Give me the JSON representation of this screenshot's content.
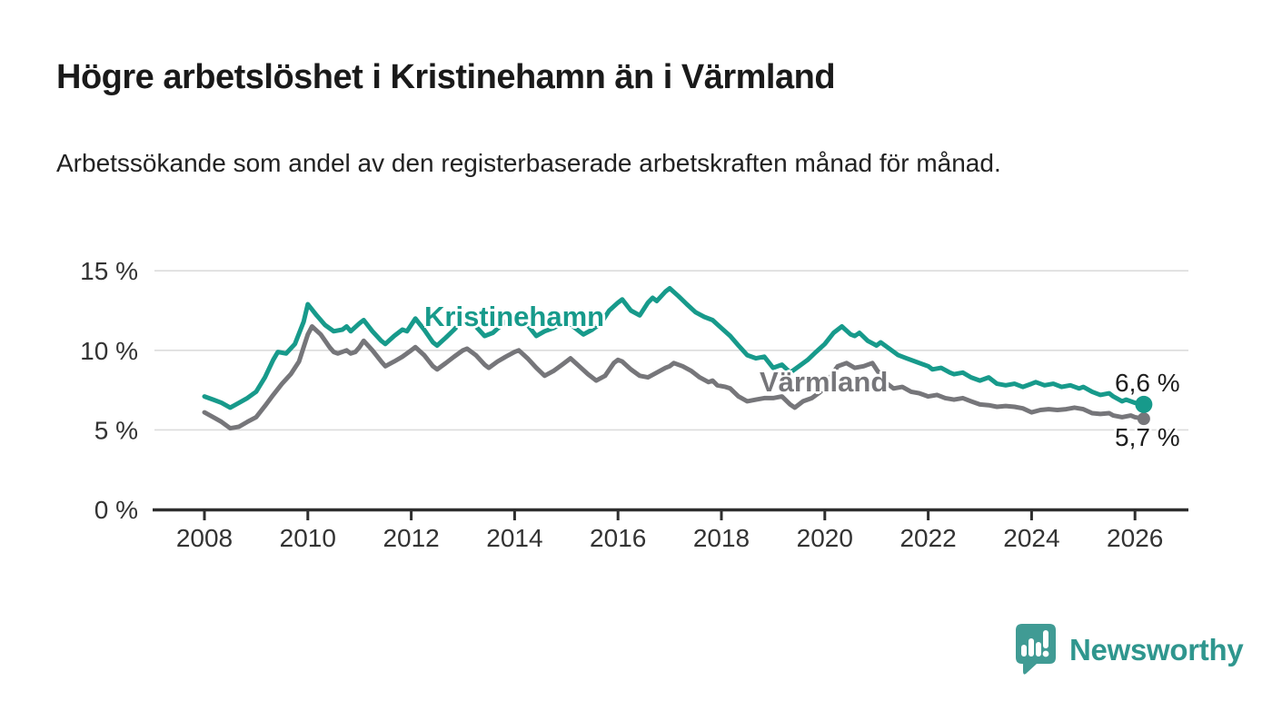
{
  "title": "Högre arbetslöshet i Kristinehamn än i Värmland",
  "subtitle": "Arbetssökande som andel av den registerbaserade arbetskraften månad för månad.",
  "footer": {
    "brand": "Newsworthy"
  },
  "colors": {
    "kristinehamn": "#179a8b",
    "varmland": "#76767a",
    "gridline": "#dcdcdc",
    "axis": "#2e2e2e",
    "axis_text": "#333333",
    "logo_bubble": "#409b94",
    "logo_text": "#2f968e"
  },
  "chart_data": {
    "type": "line",
    "title": "Högre arbetslöshet i Kristinehamn än i Värmland",
    "xlabel": "",
    "ylabel": "Arbetssökande som andel av den registerbaserade arbetskraften",
    "grid": true,
    "legend_position": "inline-labels",
    "xlim": [
      2007.0,
      2027.0
    ],
    "ylim": [
      0,
      15.5
    ],
    "x_ticks": [
      {
        "value": 2008,
        "label": "2008"
      },
      {
        "value": 2010,
        "label": "2010"
      },
      {
        "value": 2012,
        "label": "2012"
      },
      {
        "value": 2014,
        "label": "2014"
      },
      {
        "value": 2016,
        "label": "2016"
      },
      {
        "value": 2018,
        "label": "2018"
      },
      {
        "value": 2020,
        "label": "2020"
      },
      {
        "value": 2022,
        "label": "2022"
      },
      {
        "value": 2024,
        "label": "2024"
      },
      {
        "value": 2026,
        "label": "2026"
      }
    ],
    "y_ticks": [
      {
        "value": 0,
        "label": "0 %"
      },
      {
        "value": 5,
        "label": "5 %"
      },
      {
        "value": 10,
        "label": "10 %"
      },
      {
        "value": 15,
        "label": "15 %"
      }
    ],
    "series": [
      {
        "name": "Kristinehamn",
        "color": "#179a8b",
        "end_label": "6,6 %",
        "end_value": 6.6,
        "points": [
          [
            2008.0,
            7.1
          ],
          [
            2008.17,
            6.9
          ],
          [
            2008.33,
            6.7
          ],
          [
            2008.5,
            6.4
          ],
          [
            2008.67,
            6.7
          ],
          [
            2008.83,
            7.0
          ],
          [
            2009.0,
            7.4
          ],
          [
            2009.17,
            8.3
          ],
          [
            2009.33,
            9.4
          ],
          [
            2009.42,
            9.9
          ],
          [
            2009.58,
            9.8
          ],
          [
            2009.75,
            10.4
          ],
          [
            2009.92,
            11.8
          ],
          [
            2010.0,
            12.9
          ],
          [
            2010.17,
            12.2
          ],
          [
            2010.33,
            11.6
          ],
          [
            2010.5,
            11.2
          ],
          [
            2010.67,
            11.3
          ],
          [
            2010.75,
            11.5
          ],
          [
            2010.83,
            11.2
          ],
          [
            2011.0,
            11.7
          ],
          [
            2011.08,
            11.9
          ],
          [
            2011.25,
            11.2
          ],
          [
            2011.42,
            10.6
          ],
          [
            2011.5,
            10.4
          ],
          [
            2011.67,
            10.9
          ],
          [
            2011.83,
            11.3
          ],
          [
            2011.92,
            11.2
          ],
          [
            2012.0,
            11.6
          ],
          [
            2012.08,
            12.0
          ],
          [
            2012.25,
            11.3
          ],
          [
            2012.42,
            10.5
          ],
          [
            2012.5,
            10.3
          ],
          [
            2012.67,
            10.8
          ],
          [
            2012.83,
            11.3
          ],
          [
            2013.0,
            11.9
          ],
          [
            2013.08,
            12.2
          ],
          [
            2013.25,
            11.5
          ],
          [
            2013.42,
            10.9
          ],
          [
            2013.58,
            11.1
          ],
          [
            2013.75,
            11.6
          ],
          [
            2013.92,
            12.0
          ],
          [
            2014.0,
            12.2
          ],
          [
            2014.08,
            12.3
          ],
          [
            2014.25,
            11.6
          ],
          [
            2014.42,
            10.9
          ],
          [
            2014.58,
            11.2
          ],
          [
            2014.75,
            11.4
          ],
          [
            2014.92,
            11.7
          ],
          [
            2015.0,
            11.9
          ],
          [
            2015.17,
            11.4
          ],
          [
            2015.33,
            11.0
          ],
          [
            2015.5,
            11.3
          ],
          [
            2015.67,
            11.7
          ],
          [
            2015.83,
            12.5
          ],
          [
            2016.0,
            13.0
          ],
          [
            2016.08,
            13.2
          ],
          [
            2016.25,
            12.5
          ],
          [
            2016.42,
            12.2
          ],
          [
            2016.58,
            13.0
          ],
          [
            2016.67,
            13.3
          ],
          [
            2016.75,
            13.1
          ],
          [
            2016.92,
            13.7
          ],
          [
            2017.0,
            13.9
          ],
          [
            2017.17,
            13.4
          ],
          [
            2017.33,
            12.9
          ],
          [
            2017.5,
            12.4
          ],
          [
            2017.67,
            12.1
          ],
          [
            2017.83,
            11.9
          ],
          [
            2018.0,
            11.4
          ],
          [
            2018.17,
            10.9
          ],
          [
            2018.33,
            10.3
          ],
          [
            2018.5,
            9.7
          ],
          [
            2018.67,
            9.5
          ],
          [
            2018.83,
            9.6
          ],
          [
            2019.0,
            8.9
          ],
          [
            2019.17,
            9.1
          ],
          [
            2019.33,
            8.6
          ],
          [
            2019.5,
            9.0
          ],
          [
            2019.67,
            9.4
          ],
          [
            2019.83,
            9.9
          ],
          [
            2020.0,
            10.4
          ],
          [
            2020.17,
            11.1
          ],
          [
            2020.33,
            11.5
          ],
          [
            2020.5,
            11.0
          ],
          [
            2020.58,
            10.9
          ],
          [
            2020.67,
            11.1
          ],
          [
            2020.83,
            10.6
          ],
          [
            2021.0,
            10.3
          ],
          [
            2021.08,
            10.5
          ],
          [
            2021.25,
            10.1
          ],
          [
            2021.42,
            9.7
          ],
          [
            2021.58,
            9.5
          ],
          [
            2021.75,
            9.3
          ],
          [
            2021.92,
            9.1
          ],
          [
            2022.0,
            9.0
          ],
          [
            2022.08,
            8.8
          ],
          [
            2022.25,
            8.9
          ],
          [
            2022.42,
            8.6
          ],
          [
            2022.5,
            8.5
          ],
          [
            2022.67,
            8.6
          ],
          [
            2022.83,
            8.3
          ],
          [
            2023.0,
            8.1
          ],
          [
            2023.17,
            8.3
          ],
          [
            2023.33,
            7.9
          ],
          [
            2023.5,
            7.8
          ],
          [
            2023.67,
            7.9
          ],
          [
            2023.83,
            7.7
          ],
          [
            2024.0,
            7.9
          ],
          [
            2024.08,
            8.0
          ],
          [
            2024.25,
            7.8
          ],
          [
            2024.42,
            7.9
          ],
          [
            2024.58,
            7.7
          ],
          [
            2024.75,
            7.8
          ],
          [
            2024.92,
            7.6
          ],
          [
            2025.0,
            7.7
          ],
          [
            2025.17,
            7.4
          ],
          [
            2025.33,
            7.2
          ],
          [
            2025.5,
            7.3
          ],
          [
            2025.58,
            7.1
          ],
          [
            2025.75,
            6.8
          ],
          [
            2025.83,
            6.9
          ],
          [
            2026.0,
            6.7
          ],
          [
            2026.17,
            6.6
          ]
        ]
      },
      {
        "name": "Värmland",
        "color": "#76767a",
        "end_label": "5,7 %",
        "end_value": 5.7,
        "points": [
          [
            2008.0,
            6.1
          ],
          [
            2008.17,
            5.8
          ],
          [
            2008.33,
            5.5
          ],
          [
            2008.5,
            5.1
          ],
          [
            2008.67,
            5.2
          ],
          [
            2008.83,
            5.5
          ],
          [
            2009.0,
            5.8
          ],
          [
            2009.17,
            6.5
          ],
          [
            2009.33,
            7.2
          ],
          [
            2009.5,
            7.9
          ],
          [
            2009.67,
            8.5
          ],
          [
            2009.83,
            9.3
          ],
          [
            2009.92,
            10.2
          ],
          [
            2010.0,
            11.0
          ],
          [
            2010.08,
            11.5
          ],
          [
            2010.25,
            11.0
          ],
          [
            2010.42,
            10.2
          ],
          [
            2010.5,
            9.9
          ],
          [
            2010.58,
            9.8
          ],
          [
            2010.75,
            10.0
          ],
          [
            2010.83,
            9.8
          ],
          [
            2010.92,
            9.9
          ],
          [
            2011.0,
            10.2
          ],
          [
            2011.08,
            10.6
          ],
          [
            2011.25,
            10.0
          ],
          [
            2011.42,
            9.3
          ],
          [
            2011.5,
            9.0
          ],
          [
            2011.67,
            9.3
          ],
          [
            2011.83,
            9.6
          ],
          [
            2012.0,
            10.0
          ],
          [
            2012.08,
            10.2
          ],
          [
            2012.25,
            9.7
          ],
          [
            2012.42,
            9.0
          ],
          [
            2012.5,
            8.8
          ],
          [
            2012.67,
            9.2
          ],
          [
            2012.83,
            9.6
          ],
          [
            2013.0,
            10.0
          ],
          [
            2013.08,
            10.1
          ],
          [
            2013.25,
            9.7
          ],
          [
            2013.42,
            9.1
          ],
          [
            2013.5,
            8.9
          ],
          [
            2013.67,
            9.3
          ],
          [
            2013.83,
            9.6
          ],
          [
            2014.0,
            9.9
          ],
          [
            2014.08,
            10.0
          ],
          [
            2014.25,
            9.5
          ],
          [
            2014.42,
            8.9
          ],
          [
            2014.58,
            8.4
          ],
          [
            2014.75,
            8.7
          ],
          [
            2014.92,
            9.1
          ],
          [
            2015.0,
            9.3
          ],
          [
            2015.08,
            9.5
          ],
          [
            2015.25,
            9.0
          ],
          [
            2015.42,
            8.5
          ],
          [
            2015.58,
            8.1
          ],
          [
            2015.75,
            8.4
          ],
          [
            2015.92,
            9.2
          ],
          [
            2016.0,
            9.4
          ],
          [
            2016.08,
            9.3
          ],
          [
            2016.25,
            8.8
          ],
          [
            2016.42,
            8.4
          ],
          [
            2016.58,
            8.3
          ],
          [
            2016.75,
            8.6
          ],
          [
            2016.92,
            8.9
          ],
          [
            2017.0,
            9.0
          ],
          [
            2017.08,
            9.2
          ],
          [
            2017.25,
            9.0
          ],
          [
            2017.42,
            8.7
          ],
          [
            2017.58,
            8.3
          ],
          [
            2017.75,
            8.0
          ],
          [
            2017.83,
            8.1
          ],
          [
            2017.92,
            7.8
          ],
          [
            2018.08,
            7.7
          ],
          [
            2018.17,
            7.6
          ],
          [
            2018.33,
            7.1
          ],
          [
            2018.5,
            6.8
          ],
          [
            2018.67,
            6.9
          ],
          [
            2018.83,
            7.0
          ],
          [
            2019.0,
            7.0
          ],
          [
            2019.17,
            7.1
          ],
          [
            2019.33,
            6.6
          ],
          [
            2019.42,
            6.4
          ],
          [
            2019.58,
            6.8
          ],
          [
            2019.75,
            7.0
          ],
          [
            2019.92,
            7.4
          ],
          [
            2020.08,
            8.2
          ],
          [
            2020.25,
            9.0
          ],
          [
            2020.42,
            9.2
          ],
          [
            2020.58,
            8.9
          ],
          [
            2020.75,
            9.0
          ],
          [
            2020.92,
            9.2
          ],
          [
            2021.0,
            8.8
          ],
          [
            2021.17,
            8.0
          ],
          [
            2021.33,
            7.6
          ],
          [
            2021.5,
            7.7
          ],
          [
            2021.67,
            7.4
          ],
          [
            2021.83,
            7.3
          ],
          [
            2022.0,
            7.1
          ],
          [
            2022.17,
            7.2
          ],
          [
            2022.33,
            7.0
          ],
          [
            2022.5,
            6.9
          ],
          [
            2022.67,
            7.0
          ],
          [
            2022.83,
            6.8
          ],
          [
            2023.0,
            6.6
          ],
          [
            2023.17,
            6.55
          ],
          [
            2023.33,
            6.45
          ],
          [
            2023.5,
            6.5
          ],
          [
            2023.67,
            6.45
          ],
          [
            2023.83,
            6.35
          ],
          [
            2024.0,
            6.1
          ],
          [
            2024.17,
            6.25
          ],
          [
            2024.33,
            6.3
          ],
          [
            2024.5,
            6.25
          ],
          [
            2024.67,
            6.3
          ],
          [
            2024.83,
            6.4
          ],
          [
            2025.0,
            6.3
          ],
          [
            2025.17,
            6.05
          ],
          [
            2025.33,
            6.0
          ],
          [
            2025.5,
            6.05
          ],
          [
            2025.58,
            5.9
          ],
          [
            2025.75,
            5.8
          ],
          [
            2025.92,
            5.9
          ],
          [
            2026.0,
            5.8
          ],
          [
            2026.17,
            5.7
          ]
        ]
      }
    ]
  }
}
